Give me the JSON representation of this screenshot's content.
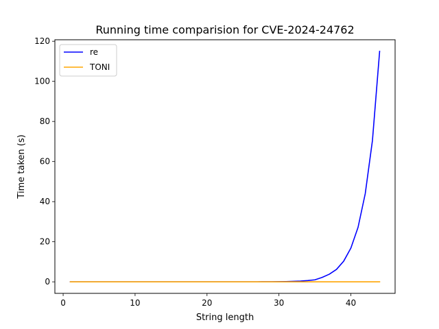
{
  "chart_data": {
    "type": "line",
    "title": "Running time comparision for CVE-2024-24762",
    "xlabel": "String length",
    "ylabel": "Time taken (s)",
    "xlim": [
      -1.15,
      46.15
    ],
    "ylim": [
      -5.75,
      120.75
    ],
    "xticks": [
      "0",
      "10",
      "20",
      "30",
      "40"
    ],
    "xtick_values": [
      0,
      10,
      20,
      30,
      40
    ],
    "yticks": [
      "0",
      "20",
      "40",
      "60",
      "80",
      "100",
      "120"
    ],
    "ytick_values": [
      0,
      20,
      40,
      60,
      80,
      100,
      120
    ],
    "legend_position": "top-left",
    "grid": false,
    "series": [
      {
        "name": "re",
        "color": "#0000ff",
        "x": [
          1,
          2,
          3,
          4,
          5,
          6,
          7,
          8,
          9,
          10,
          11,
          12,
          13,
          14,
          15,
          16,
          17,
          18,
          19,
          20,
          21,
          22,
          23,
          24,
          25,
          26,
          27,
          28,
          29,
          30,
          31,
          32,
          33,
          34,
          35,
          36,
          37,
          38,
          39,
          40,
          41,
          42,
          43,
          44
        ],
        "y": [
          0,
          0,
          0,
          0,
          0,
          0,
          0,
          0,
          0,
          0,
          0,
          0,
          0,
          0,
          0,
          0,
          0,
          0,
          0,
          0,
          0,
          0,
          0,
          0,
          0,
          0.01,
          0.02,
          0.03,
          0.05,
          0.09,
          0.15,
          0.25,
          0.4,
          0.65,
          1.0,
          2.2,
          3.8,
          6.2,
          10.3,
          16.8,
          27.2,
          44.0,
          70.5,
          115.0
        ]
      },
      {
        "name": "TONI",
        "color": "#ffa500",
        "x": [
          1,
          2,
          3,
          4,
          5,
          6,
          7,
          8,
          9,
          10,
          11,
          12,
          13,
          14,
          15,
          16,
          17,
          18,
          19,
          20,
          21,
          22,
          23,
          24,
          25,
          26,
          27,
          28,
          29,
          30,
          31,
          32,
          33,
          34,
          35,
          36,
          37,
          38,
          39,
          40,
          41,
          42,
          43,
          44
        ],
        "y": [
          0,
          0,
          0,
          0,
          0,
          0,
          0,
          0,
          0,
          0,
          0,
          0,
          0,
          0,
          0,
          0,
          0,
          0,
          0,
          0,
          0,
          0,
          0,
          0,
          0,
          0,
          0,
          0,
          0,
          0,
          0,
          0,
          0,
          0,
          0,
          0,
          0,
          0,
          0,
          0,
          0,
          0,
          0,
          0
        ]
      }
    ]
  }
}
